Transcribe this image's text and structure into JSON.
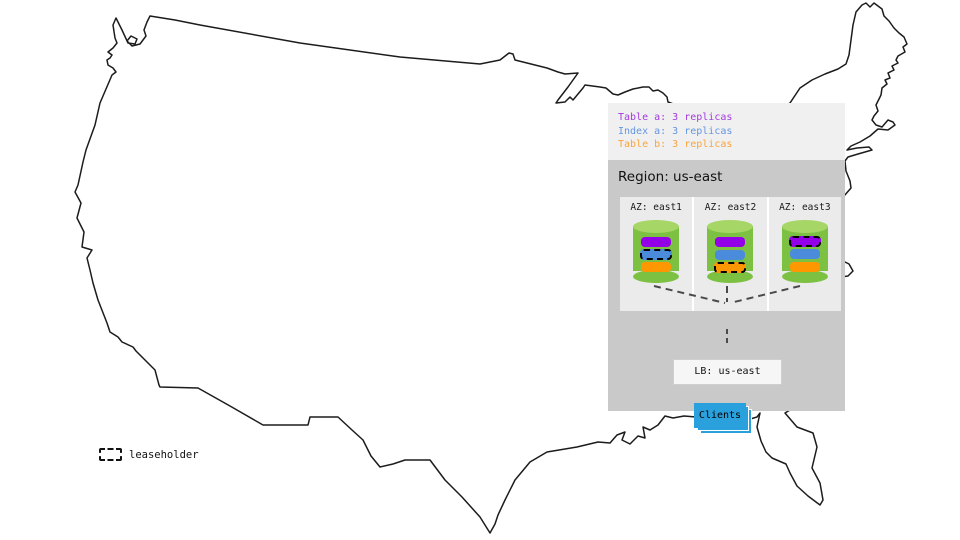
{
  "legend": {
    "items": [
      {
        "label": "Table a: 3 replicas",
        "color": "#a43ae0"
      },
      {
        "label": "Index a: 3 replicas",
        "color": "#6495e2"
      },
      {
        "label": "Table b: 3 replicas",
        "color": "#f9a43f"
      }
    ]
  },
  "region": {
    "title": "Region: us-east",
    "azs": [
      {
        "label": "AZ: east1",
        "replicas": [
          {
            "name": "table-a",
            "color": "#9300e8",
            "leaseholder": false
          },
          {
            "name": "index-a",
            "color": "#4a8cdb",
            "leaseholder": true
          },
          {
            "name": "table-b",
            "color": "#ff9800",
            "leaseholder": false
          }
        ]
      },
      {
        "label": "AZ: east2",
        "replicas": [
          {
            "name": "table-a",
            "color": "#9300e8",
            "leaseholder": false
          },
          {
            "name": "index-a",
            "color": "#4a8cdb",
            "leaseholder": false
          },
          {
            "name": "table-b",
            "color": "#ff9800",
            "leaseholder": true
          }
        ]
      },
      {
        "label": "AZ: east3",
        "replicas": [
          {
            "name": "table-a",
            "color": "#9300e8",
            "leaseholder": true
          },
          {
            "name": "index-a",
            "color": "#4a8cdb",
            "leaseholder": false
          },
          {
            "name": "table-b",
            "color": "#ff9800",
            "leaseholder": false
          }
        ]
      }
    ],
    "lb_label": "LB: us-east",
    "clients_label": "Clients"
  },
  "map_legend": {
    "leaseholder_label": "leaseholder"
  },
  "colors": {
    "cylinder_body": "#7cc142",
    "cylinder_top": "#a6d665",
    "clients_blue": "#2aa0dc",
    "legend_panel_bg": "#f0f0f0",
    "region_panel_bg": "#c9c9c9",
    "az_box_bg": "#ebebeb"
  }
}
